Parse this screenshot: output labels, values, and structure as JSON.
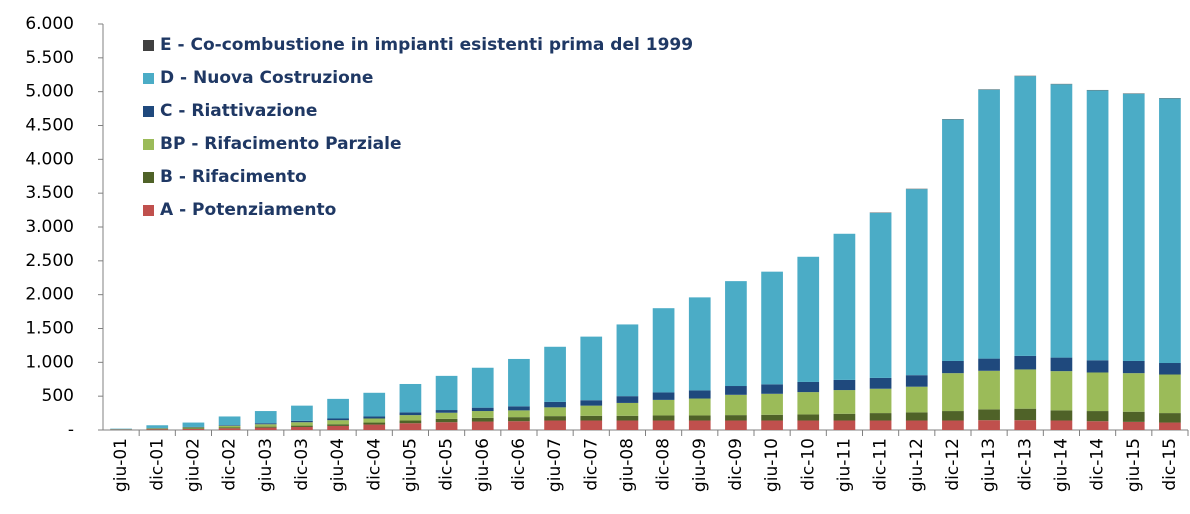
{
  "chart_data": {
    "type": "stacked_bar",
    "categories": [
      "giu-01",
      "dic-01",
      "giu-02",
      "dic-02",
      "giu-03",
      "dic-03",
      "giu-04",
      "dic-04",
      "giu-05",
      "dic-05",
      "giu-06",
      "dic-06",
      "giu-07",
      "dic-07",
      "giu-08",
      "dic-08",
      "giu-09",
      "dic-09",
      "giu-10",
      "dic-10",
      "giu-11",
      "dic-11",
      "giu-12",
      "dic-12",
      "giu-13",
      "dic-13",
      "giu-14",
      "dic-14",
      "giu-15",
      "dic-15"
    ],
    "series": [
      {
        "name": "A - Potenziamento",
        "color": "#c0504d",
        "values": [
          5,
          10,
          15,
          25,
          35,
          45,
          60,
          80,
          100,
          115,
          125,
          130,
          140,
          140,
          140,
          140,
          140,
          140,
          140,
          140,
          140,
          140,
          140,
          140,
          145,
          145,
          140,
          130,
          120,
          110
        ]
      },
      {
        "name": "B - Rifacimento",
        "color": "#4f6228",
        "values": [
          2,
          5,
          8,
          12,
          15,
          20,
          25,
          30,
          40,
          50,
          55,
          60,
          65,
          70,
          70,
          75,
          75,
          80,
          85,
          90,
          100,
          110,
          120,
          140,
          160,
          170,
          150,
          150,
          150,
          140
        ]
      },
      {
        "name": "BP - Rifacimento Parziale",
        "color": "#9bbb59",
        "values": [
          3,
          10,
          15,
          25,
          35,
          50,
          60,
          60,
          80,
          90,
          100,
          100,
          130,
          150,
          190,
          230,
          250,
          300,
          310,
          330,
          350,
          360,
          380,
          560,
          570,
          580,
          580,
          570,
          570,
          570
        ]
      },
      {
        "name": "C - Riattivazione",
        "color": "#1f497d",
        "values": [
          2,
          5,
          7,
          10,
          15,
          20,
          25,
          30,
          40,
          40,
          50,
          60,
          80,
          80,
          100,
          110,
          120,
          130,
          140,
          150,
          150,
          160,
          170,
          180,
          180,
          200,
          200,
          180,
          180,
          170
        ]
      },
      {
        "name": "D - Nuova Costruzione",
        "color": "#4bacc6",
        "values": [
          8,
          40,
          65,
          128,
          180,
          225,
          290,
          350,
          420,
          505,
          590,
          700,
          815,
          940,
          1060,
          1245,
          1375,
          1550,
          1665,
          1850,
          2160,
          2440,
          2750,
          3570,
          3975,
          4135,
          4040,
          3990,
          3950,
          3910
        ]
      },
      {
        "name": "E - Co-combustione in impianti esistenti prima del 1999",
        "color": "#404040",
        "values": [
          0,
          0,
          0,
          0,
          0,
          0,
          0,
          0,
          0,
          0,
          0,
          0,
          0,
          0,
          0,
          0,
          0,
          0,
          0,
          0,
          0,
          5,
          5,
          5,
          5,
          5,
          5,
          5,
          5,
          5
        ]
      }
    ],
    "ylim": [
      0,
      6000
    ],
    "yticks": [
      {
        "value": 0,
        "label": "-"
      },
      500,
      {
        "value": 1000,
        "label": "1.000"
      },
      {
        "value": 1500,
        "label": "1.500"
      },
      {
        "value": 2000,
        "label": "2.000"
      },
      {
        "value": 2500,
        "label": "2.500"
      },
      {
        "value": 3000,
        "label": "3.000"
      },
      {
        "value": 3500,
        "label": "3.500"
      },
      {
        "value": 4000,
        "label": "4.000"
      },
      {
        "value": 4500,
        "label": "4.500"
      },
      {
        "value": 5000,
        "label": "5.000"
      },
      {
        "value": 5500,
        "label": "5.500"
      },
      {
        "value": 6000,
        "label": "6.000"
      }
    ],
    "legend": "upper left"
  }
}
